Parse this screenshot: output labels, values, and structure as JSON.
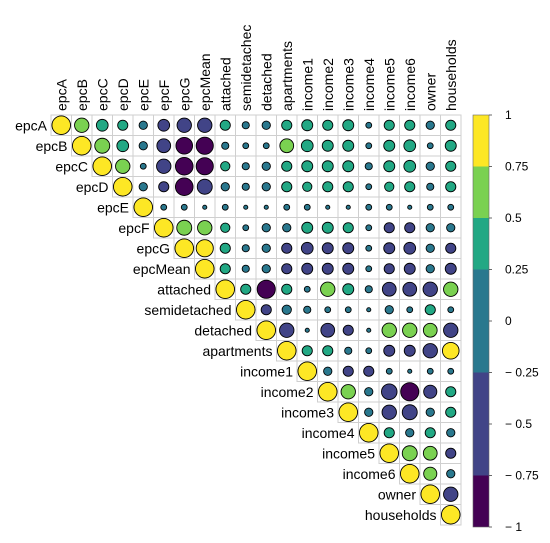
{
  "chart_data": {
    "type": "heatmap",
    "subtype": "correlation-upper-triangle-circles",
    "variables": [
      "epcA",
      "epcB",
      "epcC",
      "epcD",
      "epcE",
      "epcF",
      "epcG",
      "epcMean",
      "attached",
      "semidetached",
      "detached",
      "apartments",
      "income1",
      "income2",
      "income3",
      "income4",
      "income5",
      "income6",
      "owner",
      "households"
    ],
    "column_labels": [
      "epcA",
      "epcB",
      "epcC",
      "epcD",
      "epcE",
      "epcF",
      "epcG",
      "epcMean",
      "attached",
      "semidetachec",
      "detached",
      "apartments",
      "income1",
      "income2",
      "income3",
      "income4",
      "income5",
      "income6",
      "owner",
      "households"
    ],
    "row_labels": [
      "epcA",
      "epcB",
      "epcC",
      "epcD",
      "epcE",
      "epcF",
      "epcG",
      "epcMean",
      "attached",
      "semidetached",
      "detached",
      "apartments",
      "income1",
      "income2",
      "income3",
      "income4",
      "income5",
      "income6",
      "owner",
      "households"
    ],
    "matrix": [
      [
        1,
        0.6,
        0.4,
        0.3,
        0.2,
        -0.4,
        -0.6,
        -0.6,
        0.3,
        0.15,
        0.2,
        0.3,
        0.35,
        0.3,
        0.35,
        0.1,
        0.3,
        0.3,
        0.2,
        0.3
      ],
      [
        0.6,
        1,
        0.65,
        0.4,
        0.2,
        -0.55,
        -0.8,
        -0.85,
        0.15,
        0.1,
        0.1,
        0.55,
        0.4,
        0.35,
        0.35,
        0.1,
        0.35,
        0.4,
        0.1,
        0.35
      ],
      [
        0.4,
        0.65,
        1,
        0.6,
        0.1,
        -0.6,
        -0.9,
        -0.85,
        0.25,
        0.15,
        -0.2,
        0.3,
        0.35,
        0.35,
        0.35,
        0.15,
        0.35,
        0.4,
        0.2,
        0.3
      ],
      [
        0.3,
        0.4,
        0.6,
        1,
        0.2,
        -0.3,
        -0.9,
        -0.65,
        0.2,
        0.15,
        -0.2,
        0.3,
        0.25,
        0.3,
        0.3,
        0.1,
        0.25,
        0.3,
        0.15,
        0.3
      ],
      [
        0.2,
        0.2,
        0.1,
        0.2,
        1,
        0.1,
        -0.1,
        -0.05,
        0.1,
        0.05,
        0.05,
        0.1,
        0.1,
        0.05,
        0.05,
        0.1,
        0.1,
        0.05,
        0.1,
        0.1
      ],
      [
        -0.4,
        -0.55,
        -0.6,
        -0.3,
        0.1,
        1,
        0.65,
        0.6,
        0.25,
        0.1,
        -0.2,
        -0.2,
        0.35,
        0.35,
        0.3,
        0.1,
        -0.3,
        -0.3,
        0.2,
        0.2
      ],
      [
        -0.6,
        -0.8,
        -0.9,
        -0.9,
        -0.1,
        0.65,
        1,
        0.85,
        0.3,
        0.15,
        -0.2,
        -0.3,
        -0.4,
        -0.35,
        -0.35,
        -0.1,
        -0.35,
        -0.4,
        -0.2,
        -0.3
      ],
      [
        -0.6,
        -0.85,
        -0.85,
        -0.65,
        -0.05,
        0.6,
        0.85,
        1,
        0.3,
        0.15,
        -0.2,
        -0.3,
        -0.35,
        -0.35,
        -0.35,
        -0.1,
        -0.3,
        -0.35,
        -0.2,
        -0.35
      ],
      [
        0.3,
        0.15,
        0.25,
        0.2,
        0.1,
        0.25,
        0.3,
        0.3,
        1,
        0.3,
        -0.95,
        0.3,
        0.1,
        0.6,
        0.35,
        0.15,
        -0.55,
        -0.55,
        -0.6,
        0.6
      ],
      [
        0.15,
        0.1,
        0.15,
        0.15,
        0.05,
        0.1,
        0.15,
        0.15,
        0.3,
        1,
        -0.3,
        -0.25,
        0.15,
        0.1,
        0.1,
        0.05,
        -0.2,
        0.1,
        0.3,
        0.1
      ],
      [
        0.2,
        0.1,
        -0.2,
        -0.2,
        0.05,
        -0.2,
        -0.2,
        -0.2,
        -0.95,
        -0.3,
        1,
        -0.6,
        0.05,
        -0.55,
        -0.3,
        0.05,
        0.6,
        0.6,
        0.55,
        -0.6
      ],
      [
        0.3,
        0.55,
        0.3,
        0.3,
        0.1,
        -0.2,
        -0.3,
        -0.3,
        0.3,
        -0.25,
        -0.6,
        1,
        0.3,
        0.3,
        0.15,
        0.1,
        -0.35,
        -0.35,
        -0.6,
        0.8
      ],
      [
        0.35,
        0.4,
        0.35,
        0.25,
        0.1,
        0.35,
        -0.4,
        -0.35,
        0.1,
        0.15,
        0.05,
        0.3,
        1,
        0.2,
        -0.3,
        -0.3,
        0.1,
        0.05,
        0.1,
        0.1
      ],
      [
        0.3,
        0.35,
        0.35,
        0.3,
        0.05,
        0.35,
        -0.35,
        -0.35,
        0.6,
        0.1,
        -0.55,
        0.3,
        0.2,
        1,
        0.6,
        0.2,
        -0.7,
        -0.95,
        -0.5,
        0.3
      ],
      [
        0.35,
        0.35,
        0.35,
        0.3,
        0.05,
        0.3,
        -0.35,
        -0.35,
        0.35,
        0.1,
        -0.3,
        0.15,
        -0.3,
        0.6,
        1,
        0.2,
        -0.6,
        -0.65,
        -0.2,
        0.3
      ],
      [
        0.1,
        0.1,
        0.15,
        0.1,
        0.1,
        0.1,
        -0.1,
        -0.1,
        0.15,
        0.05,
        0.05,
        0.1,
        -0.3,
        0.2,
        0.2,
        1,
        0.3,
        0.2,
        0.3,
        -0.2
      ],
      [
        0.3,
        0.35,
        0.35,
        0.25,
        0.1,
        -0.3,
        -0.35,
        -0.3,
        -0.55,
        -0.2,
        0.6,
        -0.35,
        0.1,
        -0.7,
        -0.6,
        0.3,
        1,
        0.65,
        0.55,
        -0.3
      ],
      [
        0.3,
        0.4,
        0.4,
        0.3,
        0.05,
        -0.3,
        -0.4,
        -0.35,
        -0.55,
        0.1,
        0.6,
        -0.35,
        0.05,
        -0.95,
        -0.65,
        0.2,
        0.65,
        1,
        0.5,
        -0.2
      ],
      [
        0.2,
        0.1,
        0.2,
        0.15,
        0.1,
        0.2,
        -0.2,
        -0.2,
        -0.6,
        0.3,
        0.55,
        -0.6,
        0.1,
        -0.5,
        -0.2,
        0.3,
        0.55,
        0.5,
        1,
        -0.6
      ],
      [
        0.3,
        0.35,
        0.3,
        0.3,
        0.1,
        0.2,
        -0.3,
        -0.35,
        0.6,
        0.1,
        -0.6,
        0.8,
        0.1,
        0.3,
        0.3,
        -0.2,
        -0.3,
        -0.2,
        -0.6,
        1
      ]
    ],
    "colorbar": {
      "min": -1,
      "max": 1,
      "ticks": [
        1,
        0.75,
        0.5,
        0.25,
        0,
        -0.25,
        -0.5,
        -0.75,
        -1
      ],
      "tick_labels": [
        "1",
        "0.75",
        "0.5",
        "0.25",
        "0",
        "− 0.25",
        "− 0.5",
        "− 0.75",
        "− 1"
      ],
      "bins": [
        {
          "from": 0.75,
          "to": 1,
          "color": "#fde725"
        },
        {
          "from": 0.5,
          "to": 0.75,
          "color": "#7ad151"
        },
        {
          "from": 0.25,
          "to": 0.5,
          "color": "#22a884"
        },
        {
          "from": 0,
          "to": 0.25,
          "color": "#2a788e"
        },
        {
          "from": -0.25,
          "to": 0,
          "color": "#2a788e"
        },
        {
          "from": -0.5,
          "to": -0.25,
          "color": "#414487"
        },
        {
          "from": -0.75,
          "to": -0.5,
          "color": "#414487"
        },
        {
          "from": -1,
          "to": -0.75,
          "color": "#440154"
        }
      ]
    },
    "grid": true,
    "legend_position": "right"
  }
}
